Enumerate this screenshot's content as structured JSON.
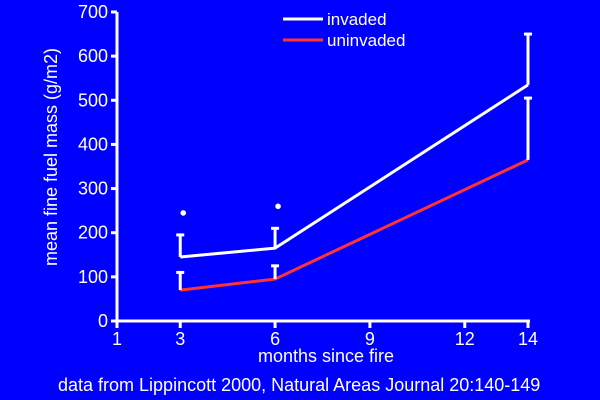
{
  "chart_data": {
    "type": "line",
    "title": "",
    "xlabel": "months since fire",
    "ylabel": "mean fine fuel mass (g/m2)",
    "xlim": [
      1,
      14
    ],
    "ylim": [
      0,
      700
    ],
    "x_ticks": [
      1,
      3,
      6,
      9,
      12,
      14
    ],
    "y_ticks": [
      0,
      100,
      200,
      300,
      400,
      500,
      600,
      700
    ],
    "x": [
      3,
      6,
      14
    ],
    "series": [
      {
        "name": "invaded",
        "color": "#ffffff",
        "values": [
          145,
          165,
          535
        ],
        "error_upper": [
          195,
          210,
          650
        ],
        "significance_marker": [
          true,
          true,
          false
        ]
      },
      {
        "name": "uninvaded",
        "color": "#ff3333",
        "values": [
          70,
          95,
          365
        ],
        "error_upper": [
          110,
          125,
          505
        ],
        "significance_marker": [
          false,
          false,
          false
        ]
      }
    ],
    "legend": {
      "placement": "top-center"
    },
    "grid": false,
    "source_note": "data from Lippincott 2000, Natural Areas Journal 20:140-149"
  },
  "colors": {
    "background": "#0000ff",
    "axis": "#ffffff"
  }
}
